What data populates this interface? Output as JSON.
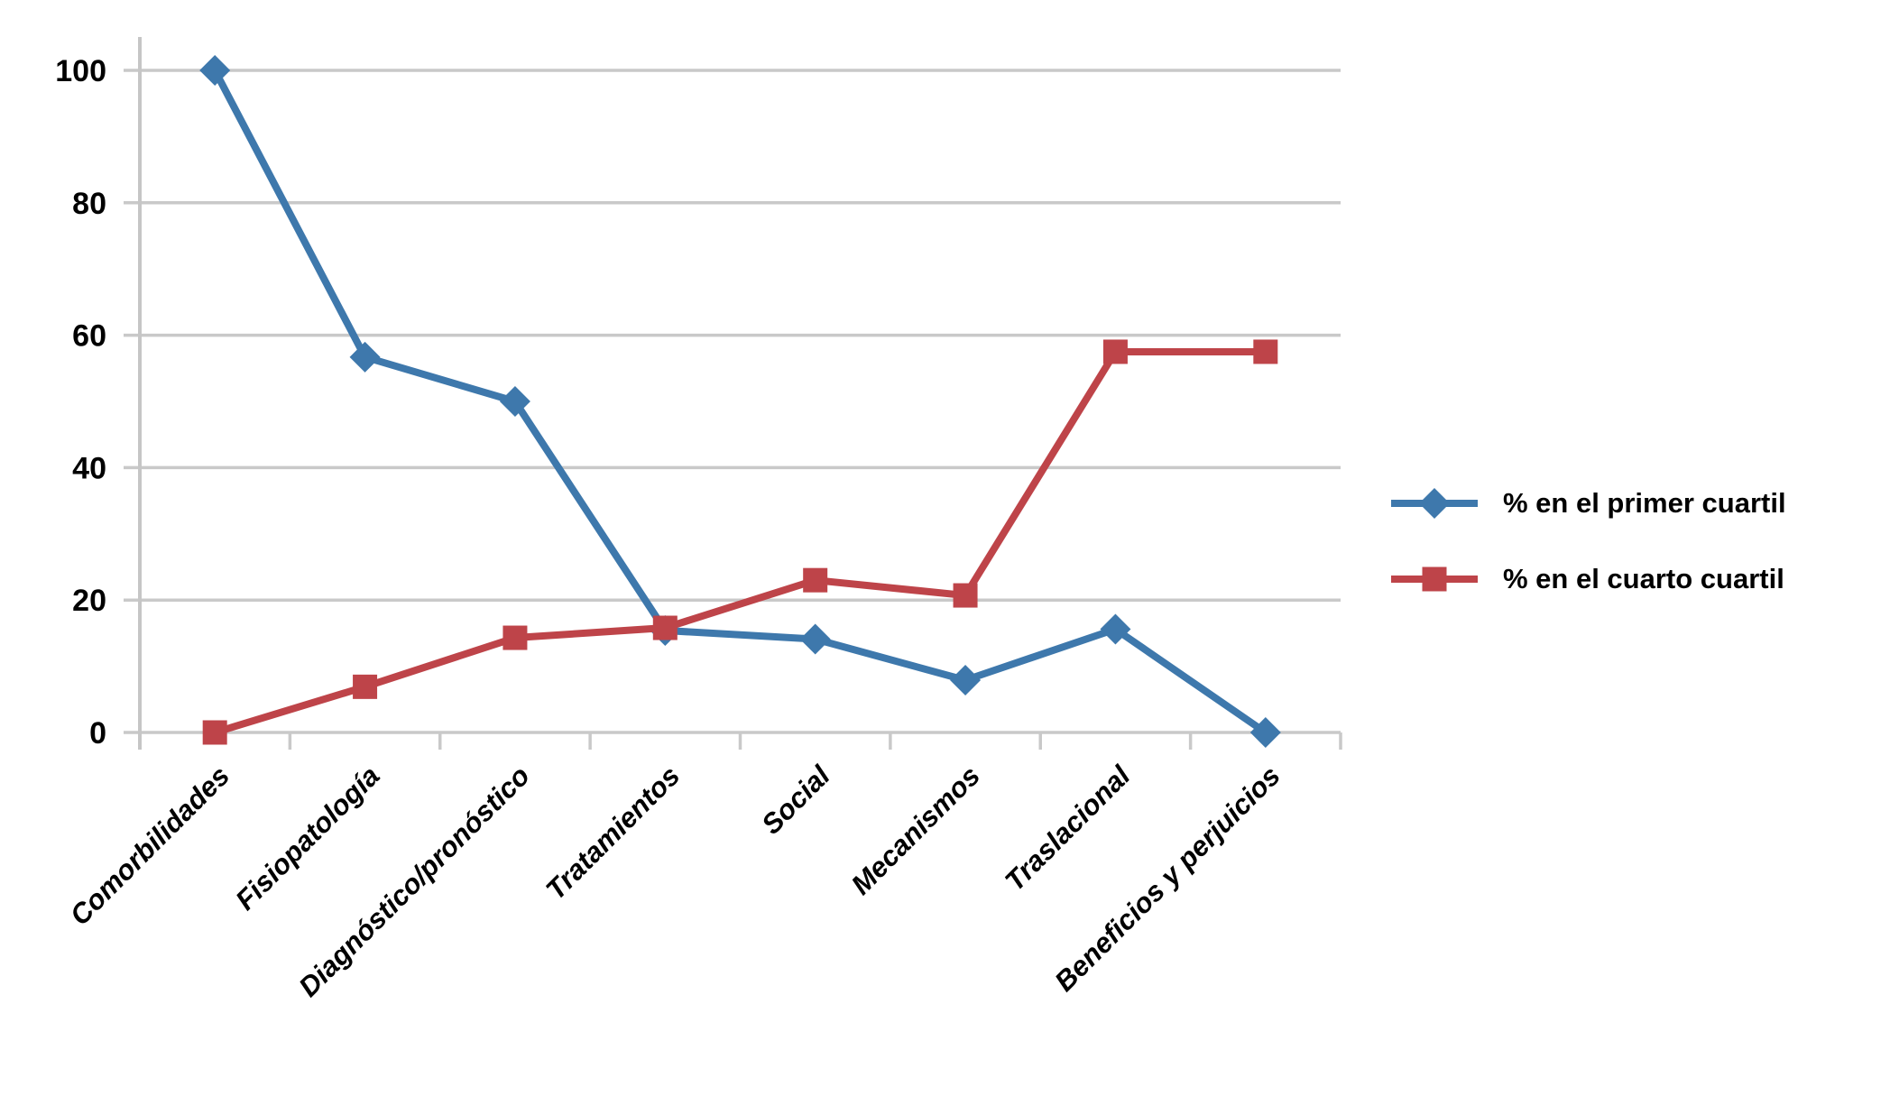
{
  "chart_data": {
    "type": "line",
    "title": "",
    "xlabel": "",
    "ylabel": "",
    "categories": [
      "Comorbilidades",
      "Fisiopatología",
      "Diagnóstico/pronóstico",
      "Tratamientos",
      "Social",
      "Mecanismos",
      "Traslacional",
      "Beneficios y perjuicios"
    ],
    "series": [
      {
        "name": "% en el primer cuartil",
        "marker": "diamond",
        "color": "#3E78AC",
        "values": [
          100,
          56.7,
          50,
          15.4,
          14.1,
          7.9,
          15.6,
          0
        ]
      },
      {
        "name": "% en el cuarto cuartil",
        "marker": "square",
        "color": "#BE4449",
        "values": [
          0,
          6.9,
          14.3,
          15.8,
          23.0,
          20.7,
          57.5,
          57.5
        ]
      }
    ],
    "yticks": [
      0,
      20,
      40,
      60,
      80,
      100
    ],
    "ylim": [
      0,
      105
    ],
    "grid": "horizontal",
    "legend_position": "right",
    "colors": {
      "gridline": "#C9C9C9",
      "axis": "#C6C6C6",
      "text": "#000000",
      "background": "#FFFFFF"
    }
  }
}
